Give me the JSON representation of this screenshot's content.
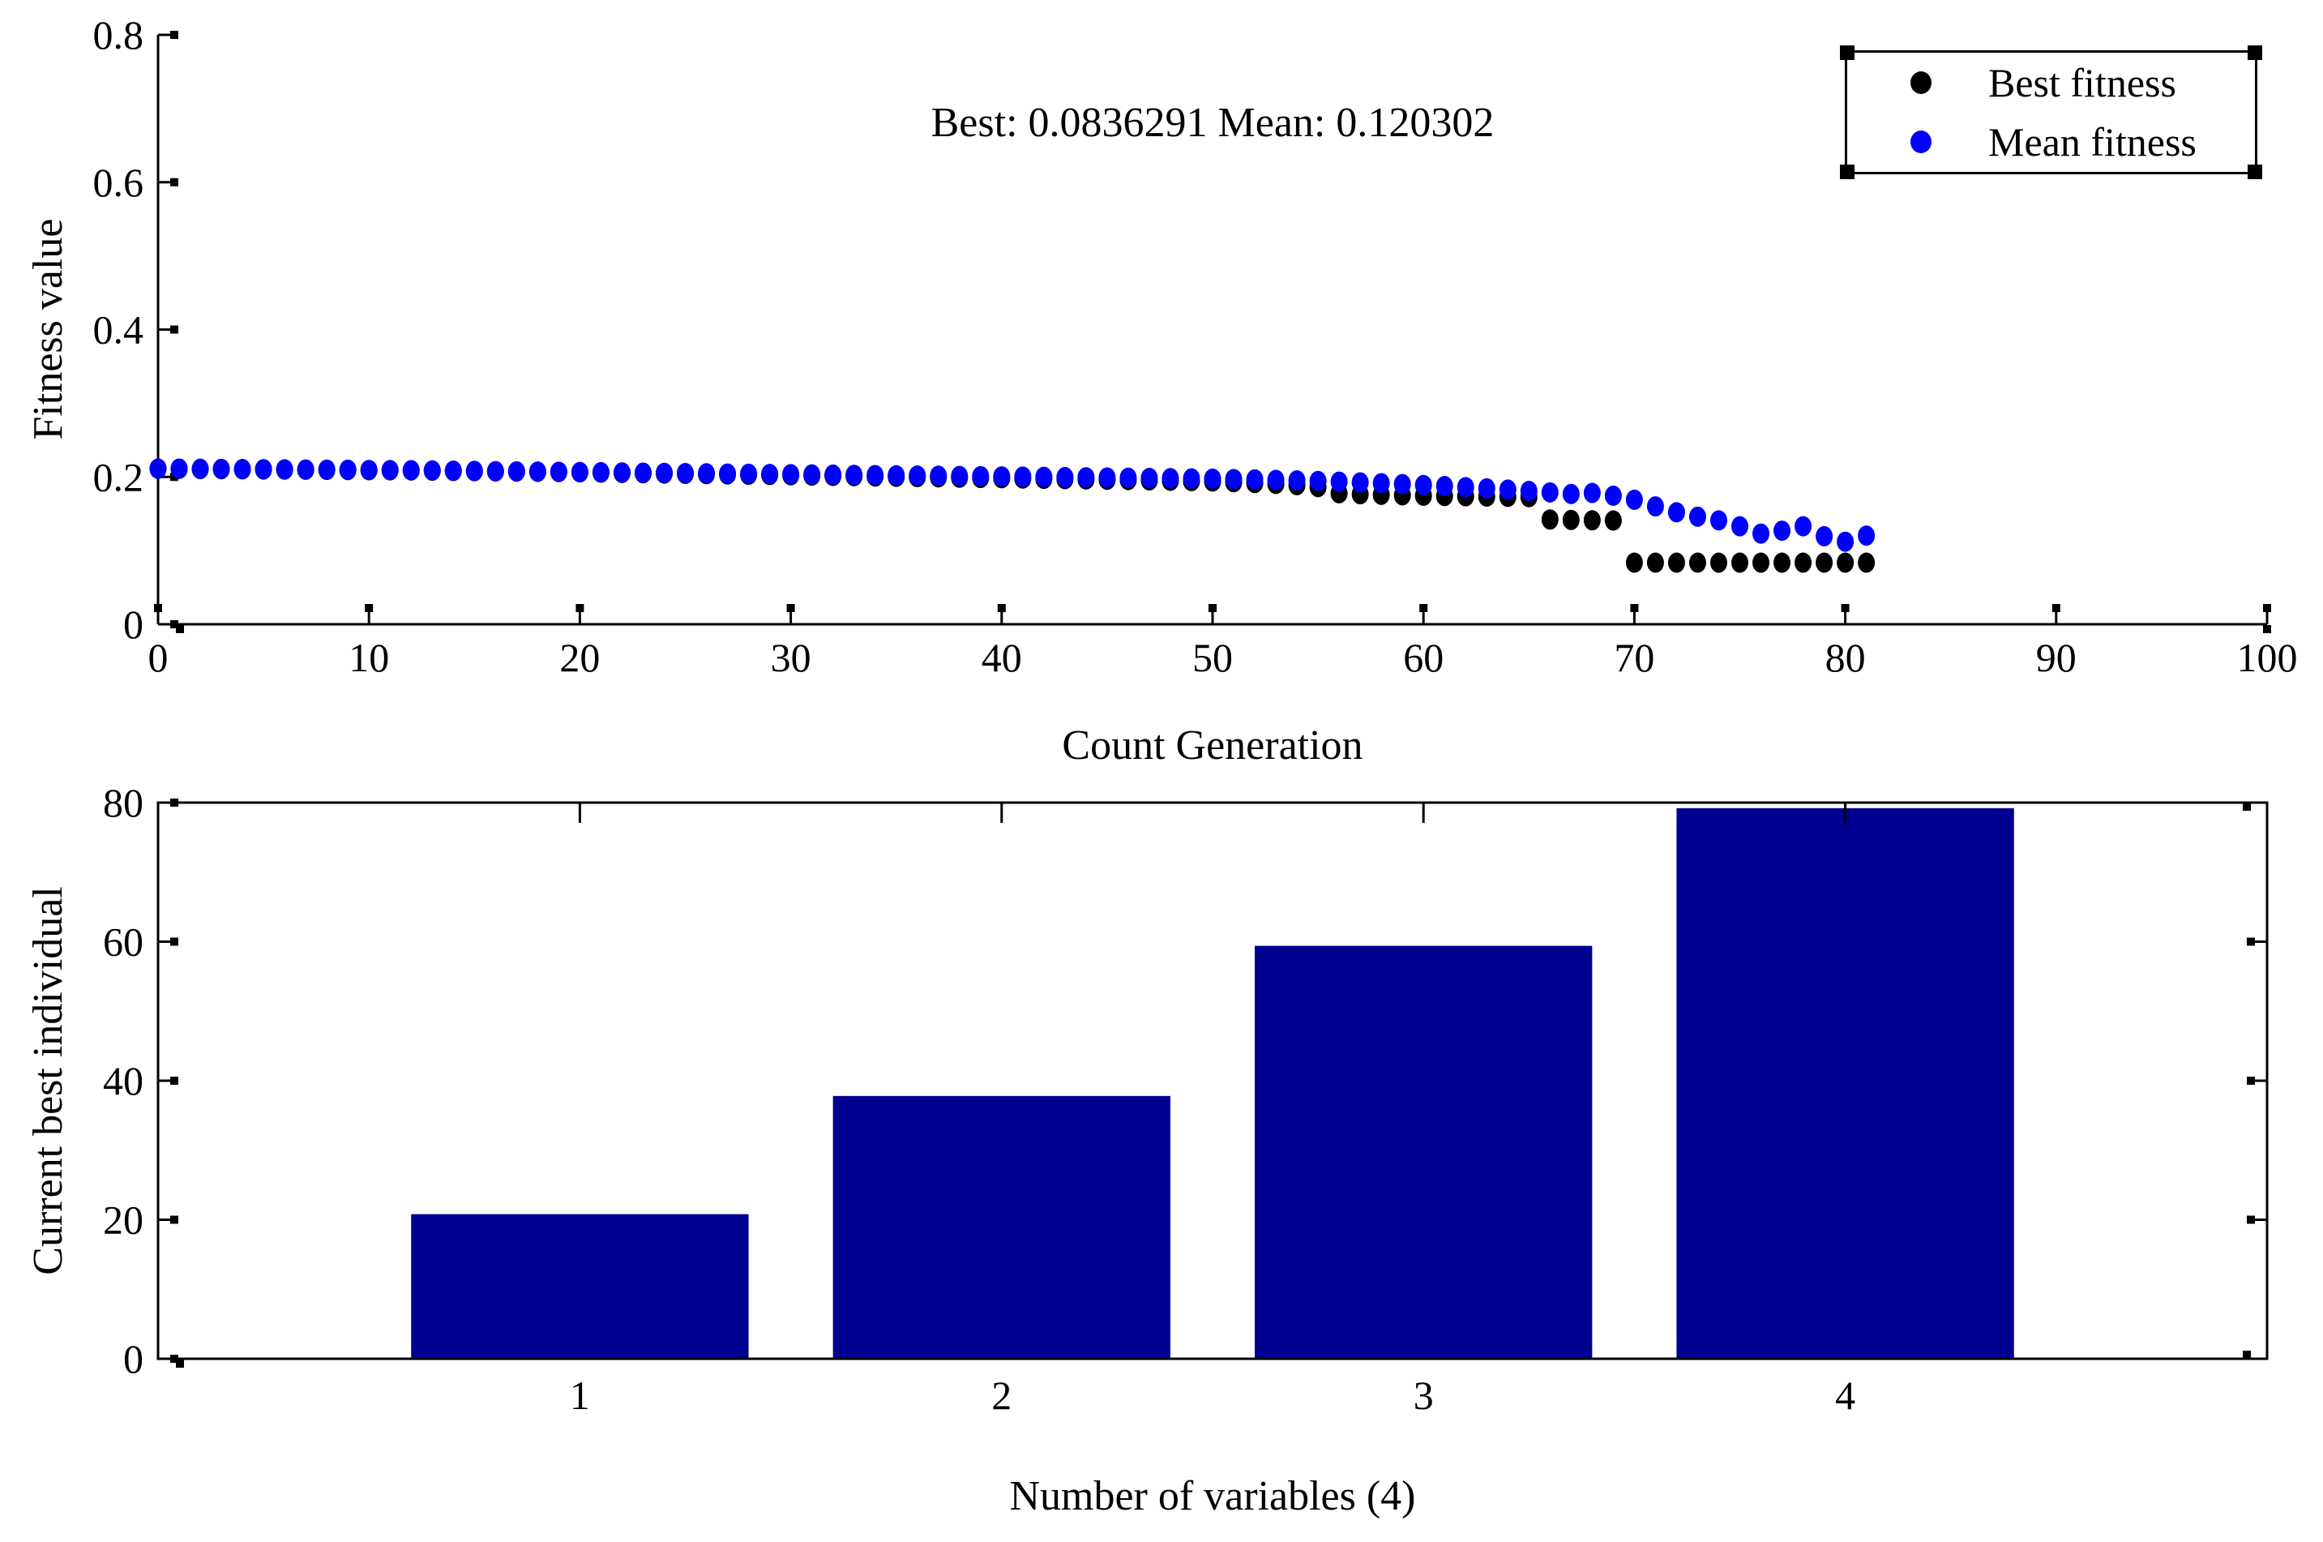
{
  "figure": {
    "background": "#ffffff",
    "kind": "genetic-algorithm-progress-figure"
  },
  "chart_data": [
    {
      "type": "scatter",
      "title": "Best: 0.0836291 Mean: 0.120302",
      "xlabel": "Count Generation",
      "ylabel": "Fitness value",
      "xlim": [
        0,
        100
      ],
      "ylim": [
        0,
        0.8
      ],
      "xticks": [
        0,
        10,
        20,
        30,
        40,
        50,
        60,
        70,
        80,
        90,
        100
      ],
      "yticks": [
        0,
        0.2,
        0.4,
        0.6,
        0.8
      ],
      "grid": false,
      "x_note": "x value equals generation index 0-81 for both series",
      "best_final": 0.0836291,
      "mean_final": 0.120302,
      "legend": {
        "position": "top-right",
        "entries": [
          {
            "label": "Best fitness",
            "color": "#000000"
          },
          {
            "label": "Mean fitness",
            "color": "#0000ff"
          }
        ]
      },
      "series": [
        {
          "name": "Best fitness",
          "color": "#000000",
          "marker": "dot",
          "y": [
            0.211,
            0.2109,
            0.2107,
            0.2105,
            0.2103,
            0.2101,
            0.2099,
            0.2097,
            0.2095,
            0.2093,
            0.2091,
            0.2089,
            0.2087,
            0.2084,
            0.2081,
            0.2078,
            0.2075,
            0.2072,
            0.2069,
            0.2066,
            0.2062,
            0.2058,
            0.2054,
            0.205,
            0.2046,
            0.2042,
            0.2038,
            0.2034,
            0.203,
            0.2026,
            0.2022,
            0.2018,
            0.2014,
            0.201,
            0.2006,
            0.2002,
            0.1998,
            0.1994,
            0.199,
            0.1986,
            0.1982,
            0.1978,
            0.1974,
            0.197,
            0.1966,
            0.1962,
            0.1958,
            0.1953,
            0.1948,
            0.1943,
            0.1938,
            0.1928,
            0.1917,
            0.1905,
            0.1888,
            0.1862,
            0.1778,
            0.1765,
            0.1757,
            0.175,
            0.1745,
            0.1741,
            0.1737,
            0.1733,
            0.1729,
            0.1725,
            0.1422,
            0.1416,
            0.1411,
            0.1408,
            0.0836291,
            0.0836291,
            0.0836291,
            0.0836291,
            0.0836291,
            0.0836291,
            0.0836291,
            0.0836291,
            0.0836291,
            0.0836291,
            0.0836291,
            0.0836291
          ]
        },
        {
          "name": "Mean fitness",
          "color": "#0000ff",
          "marker": "dot",
          "y": [
            0.2114,
            0.2113,
            0.2111,
            0.2109,
            0.2107,
            0.2105,
            0.2103,
            0.2101,
            0.2099,
            0.2097,
            0.2095,
            0.2093,
            0.2091,
            0.2088,
            0.2085,
            0.2082,
            0.2079,
            0.2076,
            0.2073,
            0.207,
            0.2067,
            0.2064,
            0.2061,
            0.2058,
            0.2055,
            0.2052,
            0.2049,
            0.2046,
            0.2043,
            0.204,
            0.2037,
            0.2034,
            0.2031,
            0.2028,
            0.2025,
            0.2022,
            0.2019,
            0.2016,
            0.2013,
            0.201,
            0.2007,
            0.2004,
            0.2001,
            0.1998,
            0.1995,
            0.1992,
            0.1989,
            0.1986,
            0.1983,
            0.198,
            0.1976,
            0.1971,
            0.1966,
            0.196,
            0.1953,
            0.1945,
            0.1936,
            0.1926,
            0.1915,
            0.1903,
            0.189,
            0.1876,
            0.1861,
            0.1845,
            0.1828,
            0.181,
            0.179,
            0.1768,
            0.1782,
            0.1745,
            0.169,
            0.16,
            0.152,
            0.146,
            0.141,
            0.133,
            0.123,
            0.127,
            0.133,
            0.1195,
            0.112,
            0.120302
          ]
        }
      ]
    },
    {
      "type": "bar",
      "categories": [
        "1",
        "2",
        "3",
        "4"
      ],
      "values": [
        20.8,
        37.8,
        59.4,
        79.2
      ],
      "xlabel": "Number of variables (4)",
      "ylabel": "Current best individual",
      "xlim": [
        0,
        5
      ],
      "ylim": [
        0,
        80
      ],
      "yticks": [
        0,
        20,
        40,
        60,
        80
      ],
      "grid": false,
      "bar_color": "#000090",
      "bar_width_fraction": 0.8,
      "legend_position": "none"
    }
  ]
}
